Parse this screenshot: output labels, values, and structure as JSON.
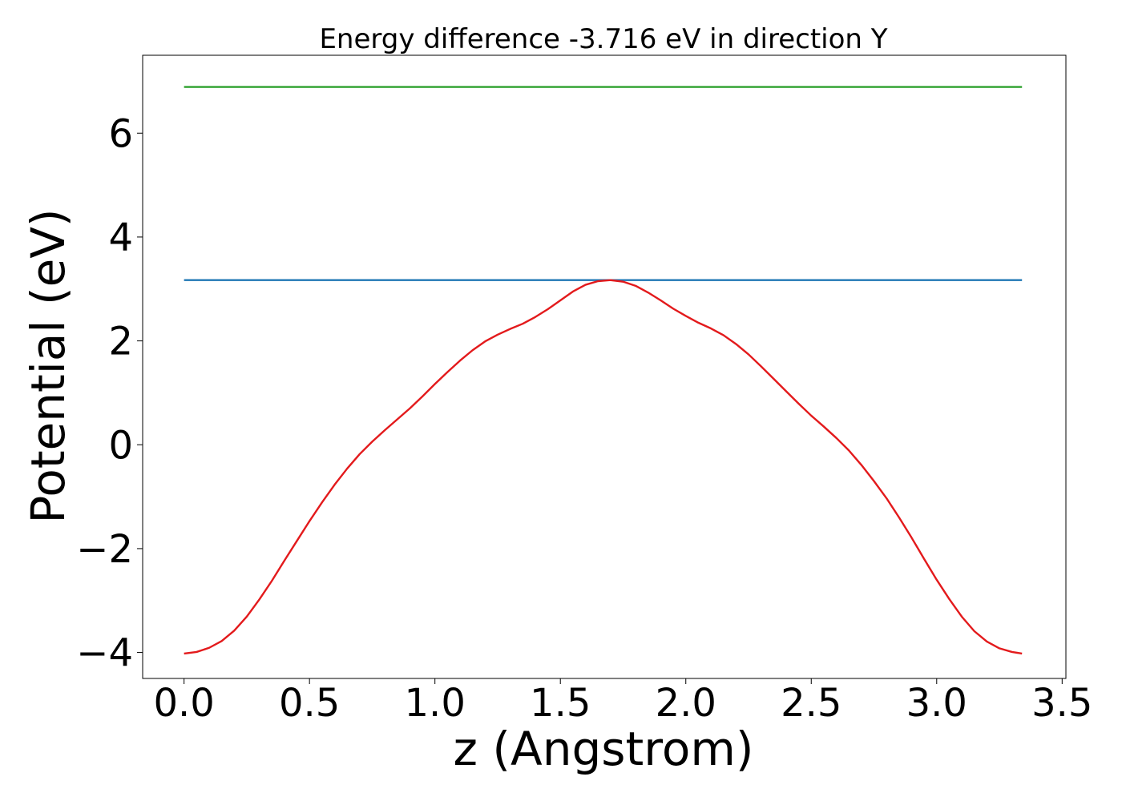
{
  "chart_data": {
    "type": "line",
    "title": "Energy difference -3.716 eV in direction Y",
    "xlabel": "z (Angstrom)",
    "ylabel": "Potential (eV)",
    "xlim": [
      -0.165,
      3.515
    ],
    "ylim": [
      -4.5,
      7.5
    ],
    "x_ticks": [
      {
        "value": 0.0,
        "label": "0.0"
      },
      {
        "value": 0.5,
        "label": "0.5"
      },
      {
        "value": 1.0,
        "label": "1.0"
      },
      {
        "value": 1.5,
        "label": "1.5"
      },
      {
        "value": 2.0,
        "label": "2.0"
      },
      {
        "value": 2.5,
        "label": "2.5"
      },
      {
        "value": 3.0,
        "label": "3.0"
      },
      {
        "value": 3.5,
        "label": "3.5"
      }
    ],
    "y_ticks": [
      {
        "value": -4,
        "label": "−4"
      },
      {
        "value": -2,
        "label": "−2"
      },
      {
        "value": 0,
        "label": "0"
      },
      {
        "value": 2,
        "label": "2"
      },
      {
        "value": 4,
        "label": "4"
      },
      {
        "value": 6,
        "label": "6"
      }
    ],
    "grid": false,
    "series": [
      {
        "color": "#2ca02c",
        "x": [
          0.0,
          3.34
        ],
        "y": [
          6.89,
          6.89
        ]
      },
      {
        "color": "#1f77b4",
        "x": [
          0.0,
          3.34
        ],
        "y": [
          3.17,
          3.17
        ]
      },
      {
        "color": "#e31a1c",
        "x": [
          0.0,
          0.05,
          0.1,
          0.15,
          0.2,
          0.25,
          0.3,
          0.35,
          0.4,
          0.45,
          0.5,
          0.55,
          0.6,
          0.65,
          0.7,
          0.75,
          0.8,
          0.85,
          0.9,
          0.95,
          1.0,
          1.05,
          1.1,
          1.15,
          1.2,
          1.25,
          1.3,
          1.35,
          1.4,
          1.45,
          1.5,
          1.55,
          1.6,
          1.65,
          1.7,
          1.75,
          1.8,
          1.85,
          1.9,
          1.95,
          2.0,
          2.05,
          2.1,
          2.15,
          2.2,
          2.25,
          2.3,
          2.35,
          2.4,
          2.45,
          2.5,
          2.55,
          2.6,
          2.65,
          2.7,
          2.75,
          2.8,
          2.85,
          2.9,
          2.95,
          3.0,
          3.05,
          3.1,
          3.15,
          3.2,
          3.25,
          3.3,
          3.34
        ],
        "y": [
          -4.02,
          -3.99,
          -3.91,
          -3.78,
          -3.58,
          -3.31,
          -2.98,
          -2.62,
          -2.23,
          -1.85,
          -1.47,
          -1.11,
          -0.77,
          -0.46,
          -0.18,
          0.06,
          0.28,
          0.49,
          0.7,
          0.93,
          1.17,
          1.4,
          1.62,
          1.82,
          1.99,
          2.12,
          2.23,
          2.33,
          2.46,
          2.61,
          2.78,
          2.95,
          3.08,
          3.15,
          3.17,
          3.14,
          3.06,
          2.93,
          2.78,
          2.62,
          2.48,
          2.35,
          2.24,
          2.11,
          1.94,
          1.74,
          1.51,
          1.27,
          1.03,
          0.79,
          0.56,
          0.35,
          0.13,
          -0.11,
          -0.39,
          -0.7,
          -1.03,
          -1.4,
          -1.79,
          -2.2,
          -2.6,
          -2.97,
          -3.31,
          -3.59,
          -3.79,
          -3.92,
          -3.99,
          -4.02
        ]
      }
    ]
  }
}
